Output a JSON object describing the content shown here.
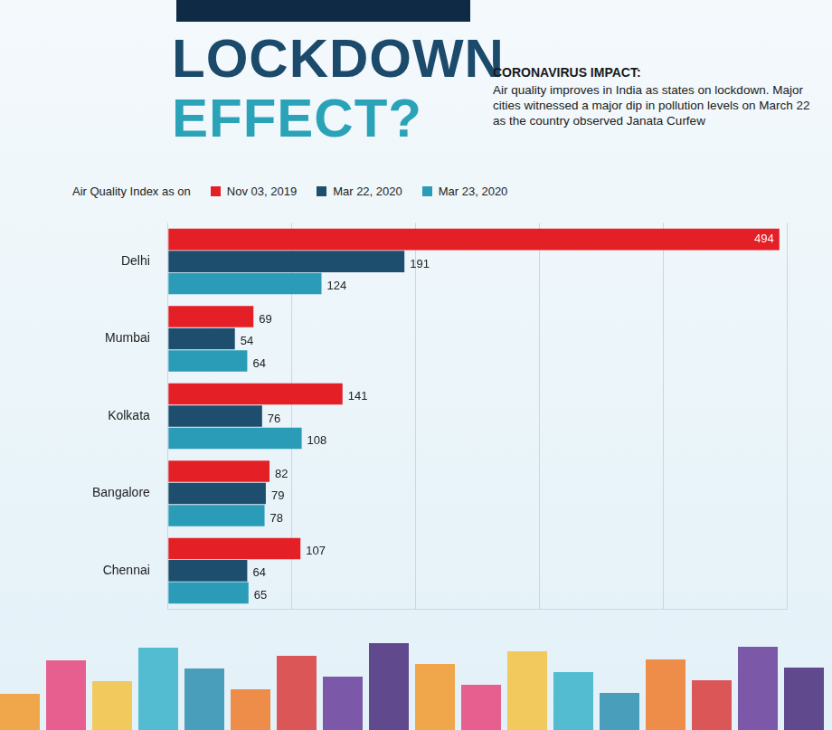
{
  "chart_data": {
    "type": "bar",
    "title": "LOCKDOWN EFFECT?",
    "subtitle": "CORONAVIRUS IMPACT:",
    "annotations": [
      "Air quality improves in India as states on lockdown. Major cities witnessed a major dip in pollution levels on March 22 as the country observed Janata Curfew"
    ],
    "legend_title": "Air Quality Index as on",
    "categories": [
      "Delhi",
      "Mumbai",
      "Kolkata",
      "Bangalore",
      "Chennai"
    ],
    "series": [
      {
        "name": "Nov 03, 2019",
        "color": "#e41f26",
        "values": [
          494,
          69,
          141,
          82,
          107
        ]
      },
      {
        "name": "Mar 22, 2020",
        "color": "#1d4e6e",
        "values": [
          191,
          54,
          76,
          79,
          64
        ]
      },
      {
        "name": "Mar 23, 2020",
        "color": "#2a9cb8",
        "values": [
          124,
          64,
          108,
          78,
          65
        ]
      }
    ],
    "orientation": "horizontal",
    "xlim": [
      0,
      500
    ],
    "xticks": [
      0,
      100,
      200,
      300,
      400,
      500
    ],
    "grid": true,
    "data_labels": true,
    "tick_labels": "y",
    "legend": "top-left"
  }
}
